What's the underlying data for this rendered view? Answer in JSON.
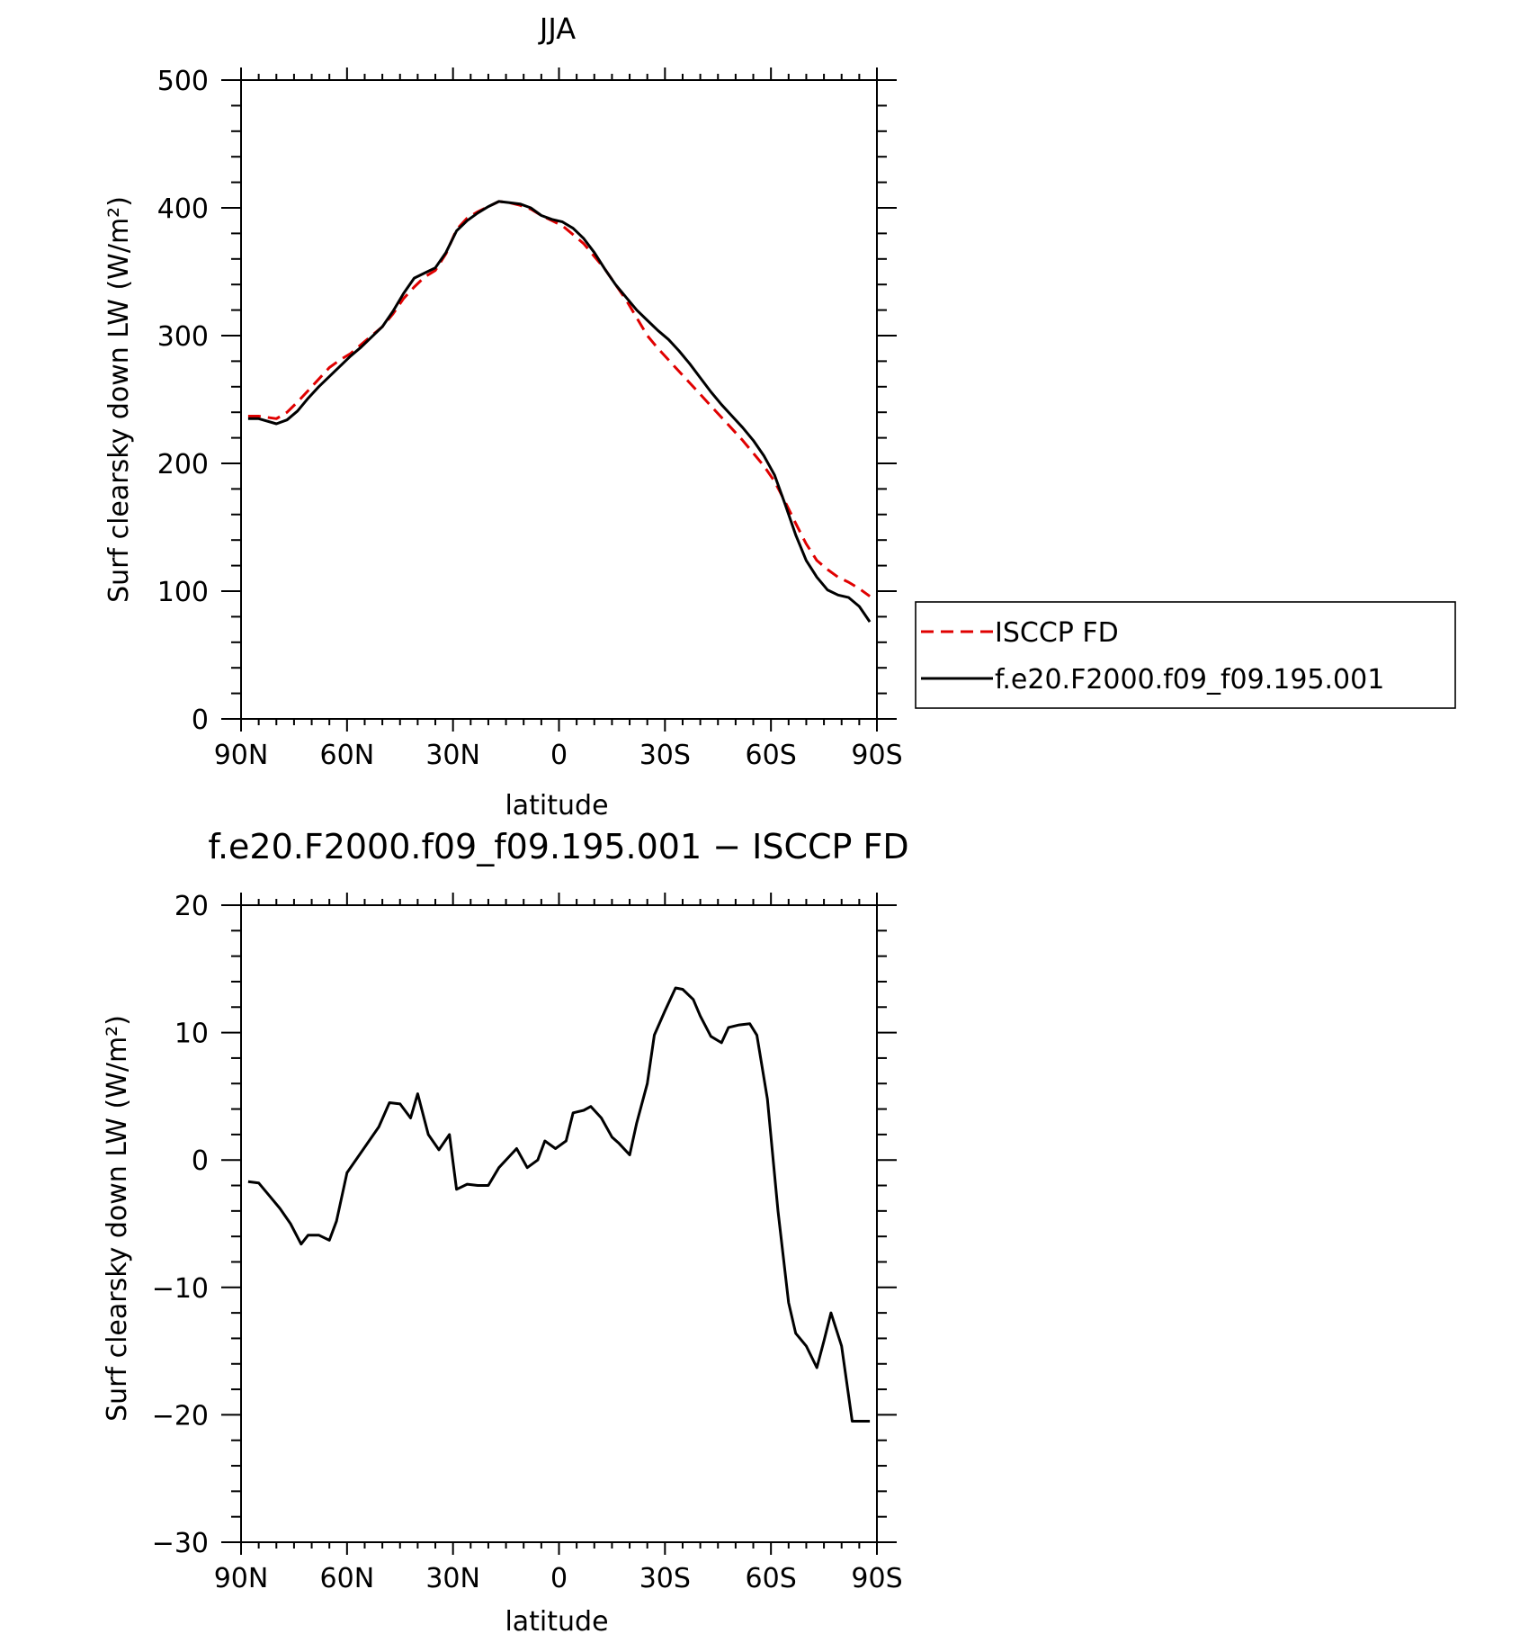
{
  "chart_data": [
    {
      "type": "line",
      "title": "JJA",
      "xlabel": "latitude",
      "ylabel": "Surf clearsky down LW (W/m²)",
      "xlim": [
        90,
        -90
      ],
      "ylim": [
        0,
        500
      ],
      "x_ticks": [
        {
          "value": 90,
          "label": "90N"
        },
        {
          "value": 60,
          "label": "60N"
        },
        {
          "value": 30,
          "label": "30N"
        },
        {
          "value": 0,
          "label": "0"
        },
        {
          "value": -30,
          "label": "30S"
        },
        {
          "value": -60,
          "label": "60S"
        },
        {
          "value": -90,
          "label": "90S"
        }
      ],
      "y_ticks": [
        {
          "value": 0,
          "label": "0"
        },
        {
          "value": 100,
          "label": "100"
        },
        {
          "value": 200,
          "label": "200"
        },
        {
          "value": 300,
          "label": "300"
        },
        {
          "value": 400,
          "label": "400"
        },
        {
          "value": 500,
          "label": "500"
        }
      ],
      "grid": false,
      "legend_position": "right",
      "series": [
        {
          "name": "ISCCP FD",
          "color": "#e00000",
          "dash": "dashed",
          "x": [
            88,
            85,
            80,
            77,
            74,
            71,
            68,
            65,
            62,
            59,
            56,
            53,
            50,
            47,
            44,
            41,
            38,
            35,
            32,
            29,
            26,
            23,
            20,
            17,
            14,
            11,
            8,
            5,
            2,
            -1,
            -4,
            -7,
            -10,
            -13,
            -16,
            -19,
            -22,
            -25,
            -28,
            -31,
            -34,
            -37,
            -40,
            -43,
            -46,
            -49,
            -52,
            -55,
            -58,
            -61,
            -64,
            -67,
            -70,
            -73,
            -76,
            -79,
            -82,
            -85,
            -88
          ],
          "values": [
            237,
            237,
            235,
            240,
            248,
            257,
            266,
            275,
            281,
            286,
            293,
            300,
            307,
            317,
            329,
            338,
            346,
            351,
            364,
            383,
            392,
            397,
            401,
            405,
            404,
            402,
            399,
            394,
            390,
            386,
            379,
            372,
            362,
            352,
            340,
            328,
            314,
            300,
            290,
            281,
            272,
            263,
            254,
            245,
            236,
            227,
            218,
            208,
            198,
            186,
            170,
            153,
            137,
            124,
            117,
            111,
            107,
            102,
            96
          ]
        },
        {
          "name": "f.e20.F2000.f09_f09.195.001",
          "color": "#000000",
          "dash": "solid",
          "x": [
            88,
            85,
            80,
            77,
            74,
            71,
            68,
            65,
            62,
            59,
            56,
            53,
            50,
            47,
            44,
            41,
            38,
            35,
            32,
            29,
            26,
            23,
            20,
            17,
            14,
            11,
            8,
            5,
            2,
            -1,
            -4,
            -7,
            -10,
            -13,
            -16,
            -19,
            -22,
            -25,
            -28,
            -31,
            -34,
            -37,
            -40,
            -43,
            -46,
            -49,
            -52,
            -55,
            -58,
            -61,
            -64,
            -67,
            -70,
            -73,
            -76,
            -79,
            -82,
            -85,
            -88
          ],
          "values": [
            235,
            235,
            231,
            234,
            241,
            251,
            260,
            268,
            276,
            284,
            291,
            299,
            307,
            319,
            333,
            345,
            349,
            353,
            365,
            382,
            390,
            396,
            401,
            405,
            404,
            403,
            400,
            394,
            391,
            389,
            384,
            376,
            365,
            352,
            340,
            330,
            320,
            312,
            304,
            297,
            288,
            278,
            267,
            256,
            246,
            237,
            228,
            218,
            206,
            191,
            168,
            144,
            124,
            111,
            101,
            97,
            95,
            88,
            76
          ]
        }
      ]
    },
    {
      "type": "line",
      "title": "f.e20.F2000.f09_f09.195.001 − ISCCP FD",
      "xlabel": "latitude",
      "ylabel": "Surf clearsky down LW (W/m²)",
      "xlim": [
        90,
        -90
      ],
      "ylim": [
        -30,
        20
      ],
      "x_ticks": [
        {
          "value": 90,
          "label": "90N"
        },
        {
          "value": 60,
          "label": "60N"
        },
        {
          "value": 30,
          "label": "30N"
        },
        {
          "value": 0,
          "label": "0"
        },
        {
          "value": -30,
          "label": "30S"
        },
        {
          "value": -60,
          "label": "60S"
        },
        {
          "value": -90,
          "label": "90S"
        }
      ],
      "y_ticks": [
        {
          "value": -30,
          "label": "−30"
        },
        {
          "value": -20,
          "label": "−20"
        },
        {
          "value": -10,
          "label": "−10"
        },
        {
          "value": 0,
          "label": "0"
        },
        {
          "value": 10,
          "label": "10"
        },
        {
          "value": 20,
          "label": "20"
        }
      ],
      "grid": false,
      "series": [
        {
          "color": "#000000",
          "dash": "solid",
          "x": [
            88,
            85,
            82,
            79,
            76,
            73,
            71,
            68,
            65,
            63,
            60,
            57,
            54,
            51,
            48,
            45,
            42,
            40,
            37,
            34,
            31,
            29,
            26,
            23,
            20,
            17,
            14,
            12,
            9,
            6,
            4,
            1,
            -2,
            -4,
            -7,
            -9,
            -12,
            -15,
            -17,
            -20,
            -22,
            -25,
            -27,
            -30,
            -33,
            -35,
            -38,
            -40,
            -43,
            -46,
            -48,
            -51,
            -54,
            -56,
            -59,
            -62,
            -65,
            -67,
            -70,
            -73,
            -75,
            -77,
            -80,
            -83,
            -86,
            -88
          ],
          "values": [
            -1.7,
            -1.8,
            -2.8,
            -3.8,
            -5.0,
            -6.6,
            -5.9,
            -5.9,
            -6.3,
            -4.8,
            -1.0,
            0.2,
            1.4,
            2.6,
            4.5,
            4.4,
            3.3,
            5.2,
            2.0,
            0.8,
            2.0,
            -2.3,
            -1.9,
            -2.0,
            -2.0,
            -0.6,
            0.3,
            0.9,
            -0.6,
            0.0,
            1.5,
            0.9,
            1.5,
            3.7,
            3.9,
            4.2,
            3.3,
            1.8,
            1.3,
            0.4,
            2.9,
            6.0,
            9.8,
            11.7,
            13.5,
            13.4,
            12.6,
            11.3,
            9.7,
            9.2,
            10.4,
            10.6,
            10.7,
            9.8,
            4.8,
            -4.0,
            -11.2,
            -13.6,
            -14.6,
            -16.3,
            -14.2,
            -12.0,
            -14.6,
            -20.5,
            -20.5,
            -20.5
          ]
        }
      ]
    }
  ]
}
